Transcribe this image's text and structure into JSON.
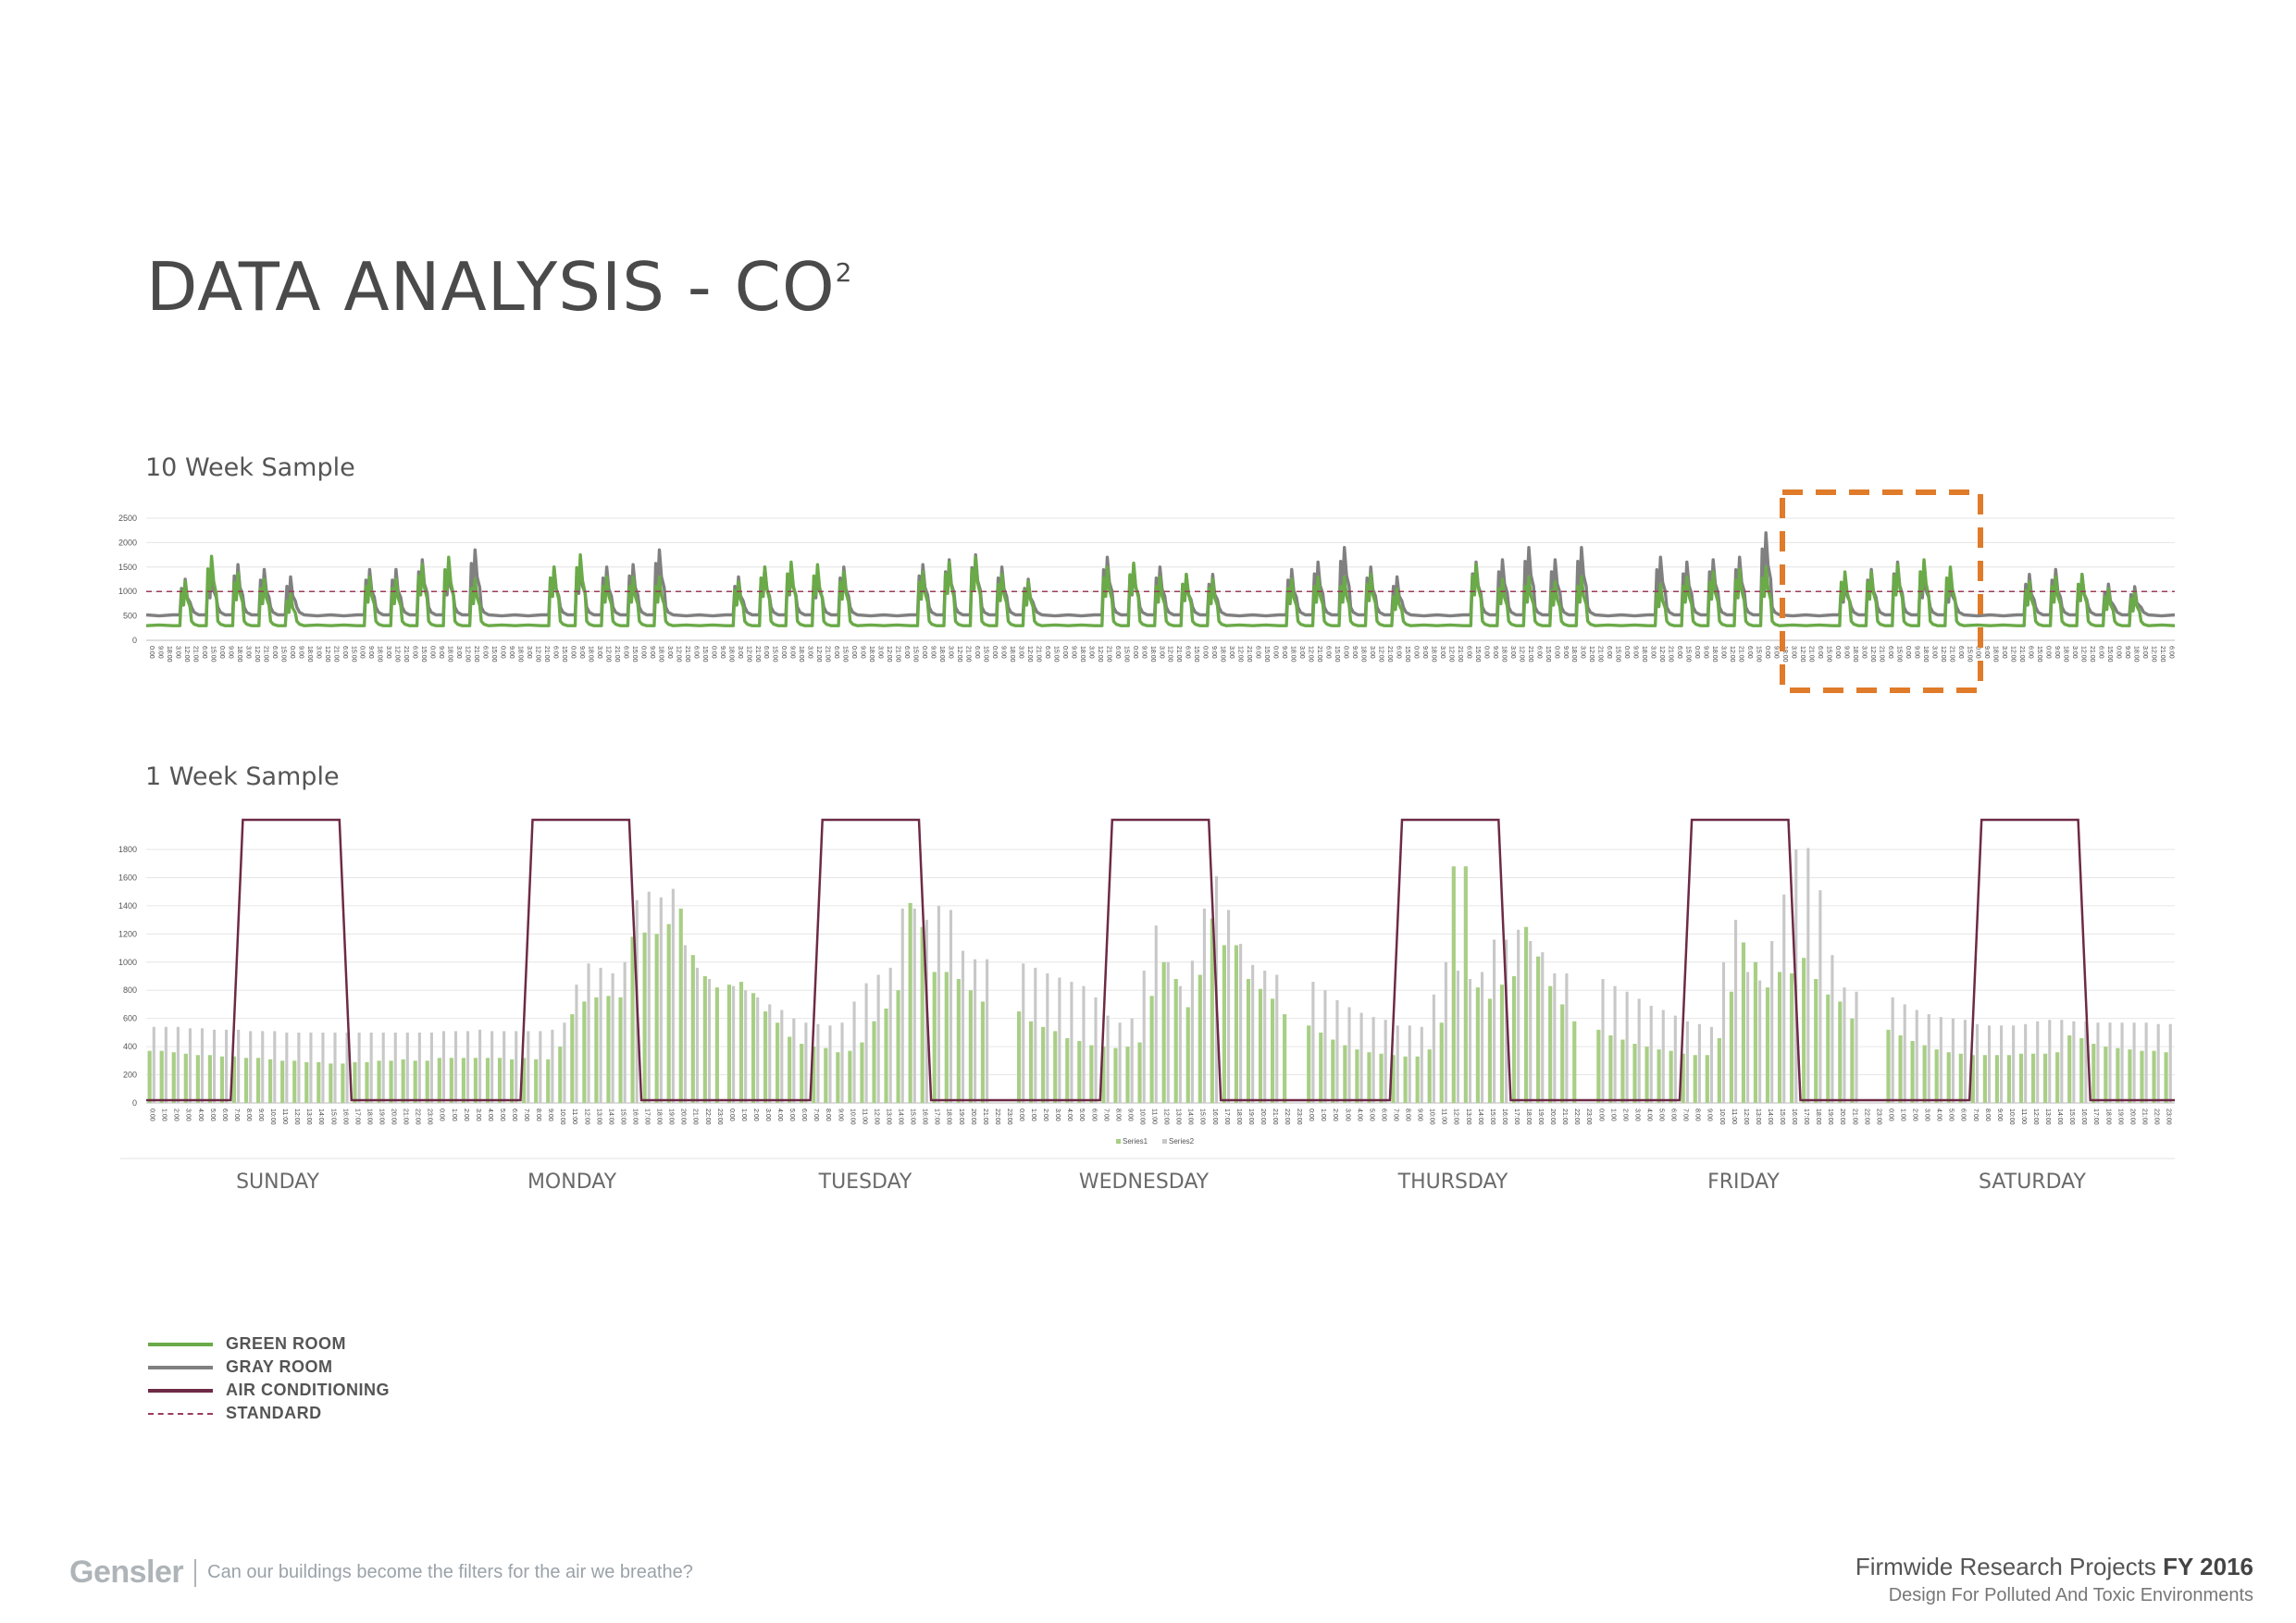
{
  "page": {
    "title": "DATA ANALYSIS - CO",
    "title_superscript": "2",
    "section1_label": "10 Week Sample",
    "section2_label": "1 Week Sample"
  },
  "colors": {
    "green_room": "#6aaa48",
    "gray_room": "#808080",
    "air_conditioning": "#6d2a45",
    "standard": "#9a3d5a",
    "highlight": "#e07b2a",
    "bar_green": "#a8cf85",
    "bar_gray": "#c8c8c8"
  },
  "legend": [
    {
      "label": "GREEN ROOM",
      "key": "green_room",
      "style": "solid"
    },
    {
      "label": "GRAY ROOM",
      "key": "gray_room",
      "style": "solid"
    },
    {
      "label": "AIR CONDITIONING",
      "key": "air_conditioning",
      "style": "solid"
    },
    {
      "label": "STANDARD",
      "key": "standard",
      "style": "dashed"
    }
  ],
  "footer": {
    "brand": "Gensler",
    "tagline": "Can our buildings become the filters for the air we breathe?",
    "project_prefix": "Firmwide Research Projects",
    "project_year": "FY 2016",
    "project_subtitle": "Design For Polluted And Toxic Environments"
  },
  "chart_data": [
    {
      "type": "line",
      "title": "10 Week Sample",
      "ylim": [
        0,
        2500
      ],
      "yticks": [
        0,
        500,
        1000,
        1500,
        2000,
        2500
      ],
      "standard": 1000,
      "x_tick_labels": [
        "0:00",
        "9:00",
        "18:00",
        "3:00",
        "12:00",
        "21:00",
        "6:00",
        "15:00"
      ],
      "highlight_week": 7,
      "series": [
        {
          "name": "GREEN ROOM",
          "daily_peaks": [
            350,
            1200,
            1720,
            1380,
            1250,
            950,
            350,
            300,
            1300,
            1250,
            1550,
            1700,
            1250,
            320,
            300,
            1500,
            1750,
            1300,
            1300,
            1300,
            300,
            280,
            1200,
            1500,
            1600,
            1550,
            1400,
            350,
            300,
            1400,
            1600,
            1700,
            1350,
            1200,
            300,
            280,
            1500,
            1580,
            1300,
            1350,
            1250,
            300,
            280,
            1250,
            1300,
            1300,
            1350,
            1050,
            280,
            280,
            1550,
            1250,
            1300,
            1200,
            1300,
            300,
            300,
            1150,
            1300,
            1400,
            1450,
            1500,
            300,
            280,
            1400,
            1400,
            1550,
            1650,
            1500,
            320,
            300,
            1200,
            1300,
            1350,
            1050,
            1000,
            350
          ]
        },
        {
          "name": "GRAY ROOM",
          "daily_peaks": [
            550,
            1250,
            1450,
            1550,
            1450,
            1300,
            550,
            500,
            1450,
            1450,
            1650,
            1550,
            1850,
            550,
            520,
            1500,
            1600,
            1500,
            1550,
            1850,
            520,
            500,
            1300,
            1500,
            1550,
            1450,
            1500,
            550,
            520,
            1550,
            1650,
            1750,
            1500,
            1250,
            520,
            500,
            1700,
            1550,
            1500,
            1350,
            1350,
            520,
            500,
            1450,
            1600,
            1900,
            1500,
            1300,
            520,
            500,
            1600,
            1650,
            1900,
            1650,
            1900,
            550,
            520,
            1700,
            1600,
            1650,
            1700,
            2200,
            550,
            520,
            1300,
            1450,
            1600,
            1450,
            1300,
            550,
            520,
            1350,
            1450,
            1350,
            1150,
            1100,
            600
          ]
        }
      ]
    },
    {
      "type": "bar",
      "title": "1 Week Sample",
      "ylim": [
        0,
        1800
      ],
      "yticks": [
        0,
        200,
        400,
        600,
        800,
        1000,
        1200,
        1400,
        1600,
        1800
      ],
      "days": [
        "SUNDAY",
        "MONDAY",
        "TUESDAY",
        "WEDNESDAY",
        "THURSDAY",
        "FRIDAY",
        "SATURDAY"
      ],
      "hours": [
        "0:00",
        "1:00",
        "2:00",
        "3:00",
        "4:00",
        "5:00",
        "6:00",
        "7:00",
        "8:00",
        "9:00",
        "10:00",
        "11:00",
        "12:00",
        "13:00",
        "14:00",
        "15:00",
        "16:00",
        "17:00",
        "18:00",
        "19:00",
        "20:00",
        "21:00",
        "22:00",
        "23:00"
      ],
      "bar_legend": [
        "Series1",
        "Series2"
      ],
      "ac_on_hours": [
        7,
        19
      ],
      "series": [
        {
          "name": "Series1",
          "values": [
            [
              370,
              370,
              360,
              350,
              340,
              340,
              330,
              330,
              320,
              320,
              310,
              300,
              300,
              290,
              290,
              280,
              280,
              290,
              290,
              300,
              300,
              310,
              300,
              300
            ],
            [
              320,
              320,
              320,
              320,
              320,
              320,
              310,
              320,
              310,
              310,
              400,
              630,
              720,
              750,
              760,
              750,
              1180,
              1210,
              1200,
              1270,
              1380,
              1050,
              900,
              820
            ],
            [
              840,
              860,
              780,
              650,
              570,
              470,
              420,
              400,
              390,
              360,
              370,
              430,
              580,
              670,
              800,
              1420,
              1250,
              930,
              930,
              880,
              800,
              720,
              0,
              0
            ],
            [
              650,
              580,
              540,
              510,
              460,
              440,
              410,
              400,
              390,
              400,
              430,
              760,
              1000,
              880,
              680,
              910,
              1310,
              1120,
              1120,
              880,
              810,
              740,
              630,
              0
            ],
            [
              550,
              500,
              450,
              410,
              380,
              360,
              350,
              340,
              330,
              330,
              380,
              570,
              1680,
              1680,
              820,
              740,
              840,
              900,
              1250,
              1040,
              830,
              700,
              580,
              0
            ],
            [
              520,
              480,
              450,
              420,
              400,
              380,
              370,
              350,
              340,
              340,
              460,
              790,
              1140,
              1000,
              820,
              930,
              920,
              1030,
              880,
              770,
              720,
              600,
              0,
              0
            ],
            [
              520,
              480,
              440,
              410,
              380,
              360,
              350,
              340,
              340,
              340,
              340,
              350,
              350,
              350,
              360,
              480,
              460,
              420,
              400,
              390,
              380,
              370,
              370,
              360
            ]
          ]
        },
        {
          "name": "Series2",
          "values": [
            [
              540,
              540,
              540,
              530,
              530,
              520,
              520,
              520,
              510,
              510,
              510,
              500,
              500,
              500,
              500,
              500,
              500,
              500,
              500,
              500,
              500,
              500,
              500,
              500
            ],
            [
              510,
              510,
              510,
              520,
              510,
              510,
              510,
              510,
              510,
              520,
              570,
              840,
              990,
              960,
              920,
              1000,
              1440,
              1500,
              1460,
              1520,
              1120,
              960,
              880,
              0
            ],
            [
              830,
              800,
              750,
              700,
              660,
              600,
              570,
              560,
              550,
              570,
              720,
              850,
              910,
              960,
              1380,
              1380,
              1300,
              1400,
              1370,
              1080,
              1020,
              1020,
              0,
              0
            ],
            [
              990,
              960,
              920,
              890,
              860,
              830,
              750,
              620,
              570,
              600,
              940,
              1260,
              1000,
              830,
              1010,
              1380,
              1610,
              1370,
              1130,
              980,
              940,
              910,
              0,
              0
            ],
            [
              860,
              800,
              730,
              680,
              640,
              610,
              590,
              550,
              550,
              540,
              770,
              1000,
              940,
              880,
              930,
              1160,
              1160,
              1230,
              1150,
              1070,
              920,
              920,
              0,
              0
            ],
            [
              880,
              830,
              790,
              740,
              690,
              660,
              620,
              580,
              560,
              540,
              1000,
              1300,
              930,
              870,
              1150,
              1480,
              1800,
              1810,
              1510,
              1050,
              820,
              790,
              0,
              0
            ],
            [
              750,
              700,
              660,
              630,
              610,
              600,
              590,
              560,
              550,
              550,
              550,
              560,
              580,
              590,
              590,
              580,
              580,
              570,
              570,
              570,
              570,
              570,
              560,
              560
            ]
          ]
        }
      ]
    }
  ]
}
